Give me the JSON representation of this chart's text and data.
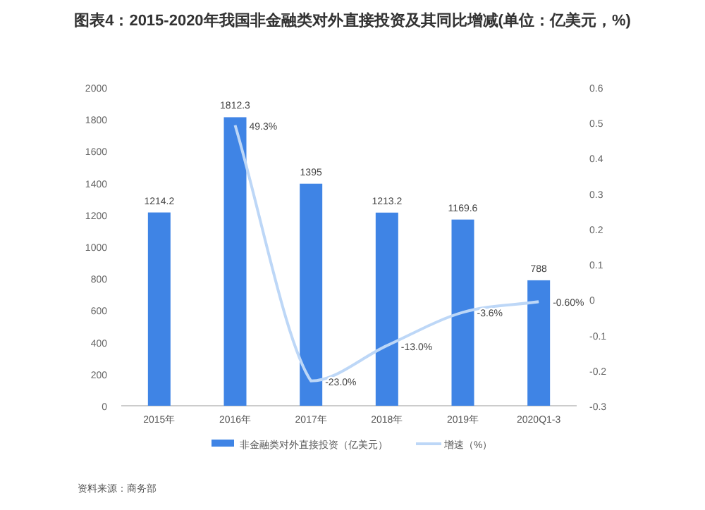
{
  "chart_data": {
    "type": "bar",
    "title": "图表4：2015-2020年我国非金融类对外直接投资及其同比增减(单位：亿美元，%)",
    "categories": [
      "2015年",
      "2016年",
      "2017年",
      "2018年",
      "2019年",
      "2020Q1-3"
    ],
    "series": [
      {
        "name": "非金融类对外直接投资（亿美元）",
        "color": "#3f84e5",
        "values": [
          1214.2,
          1812.3,
          1395,
          1213.2,
          1169.6,
          788
        ],
        "value_labels": [
          "1214.2",
          "1812.3",
          "1395",
          "1213.2",
          "1169.6",
          "788"
        ]
      },
      {
        "name": "增速（%）",
        "type": "line",
        "axis": "y2",
        "color": "#bdd7f7",
        "values": [
          null,
          0.493,
          -0.23,
          -0.13,
          -0.036,
          -0.006
        ],
        "value_labels": [
          null,
          "49.3%",
          "-23.0%",
          "-13.0%",
          "-3.6%",
          "-0.60%"
        ]
      }
    ],
    "ylim": [
      0,
      2000
    ],
    "yticks": [
      0,
      200,
      400,
      600,
      800,
      1000,
      1200,
      1400,
      1600,
      1800,
      2000
    ],
    "y2lim": [
      -0.3,
      0.6
    ],
    "y2ticks": [
      -0.3,
      -0.2,
      -0.1,
      0,
      0.1,
      0.2,
      0.3,
      0.4,
      0.5,
      0.6
    ],
    "grid": false,
    "legend": "bottom",
    "marker": "none",
    "annotations": [
      "资料来源：商务部"
    ]
  }
}
